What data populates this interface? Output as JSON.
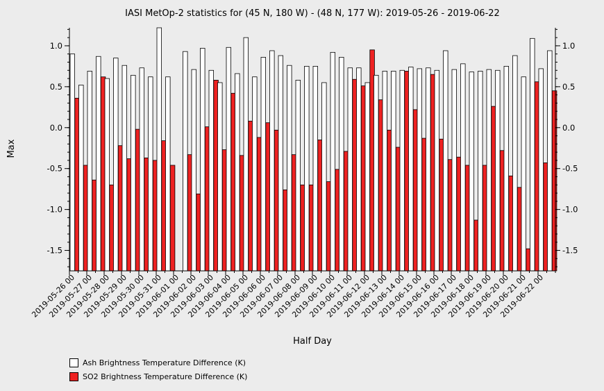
{
  "chart_data": {
    "type": "bar",
    "title": "IASI MetOp-2 statistics for (45 N, 180 W) - (48 N, 177 W): 2019-05-26 - 2019-06-22",
    "xlabel": "Half Day",
    "ylabel": "Max",
    "ylim": [
      -1.75,
      1.22
    ],
    "yticks": [
      -1.5,
      -1.0,
      -0.5,
      0.0,
      0.5,
      1.0
    ],
    "ytick_labels": [
      "-1.5",
      "-1.0",
      "-0.5",
      "0.0",
      "0.5",
      "1.0"
    ],
    "tick_labels": [
      "2019-05-26 00",
      "2019-05-27 00",
      "2019-05-28 00",
      "2019-05-29 00",
      "2019-05-30 00",
      "2019-05-31 00",
      "2019-06-01 00",
      "2019-06-02 00",
      "2019-06-03 00",
      "2019-06-04 00",
      "2019-06-05 00",
      "2019-06-06 00",
      "2019-06-07 00",
      "2019-06-08 00",
      "2019-06-09 00",
      "2019-06-10 00",
      "2019-06-11 00",
      "2019-06-12 00",
      "2019-06-13 00",
      "2019-06-14 00",
      "2019-06-15 00",
      "2019-06-16 00",
      "2019-06-17 00",
      "2019-06-18 00",
      "2019-06-19 00",
      "2019-06-20 00",
      "2019-06-21 00",
      "2019-06-22 00"
    ],
    "series": [
      {
        "name": "Ash Brightness Temperature Difference (K)",
        "color": "#ffffff",
        "values": [
          0.9,
          0.52,
          0.69,
          0.87,
          0.6,
          0.85,
          0.76,
          0.64,
          0.73,
          0.62,
          1.22,
          0.62,
          null,
          0.93,
          0.71,
          0.97,
          0.7,
          0.55,
          0.98,
          0.66,
          1.1,
          0.62,
          0.86,
          0.94,
          0.88,
          0.76,
          0.58,
          0.75,
          0.75,
          0.55,
          0.92,
          0.86,
          0.73,
          0.73,
          0.55,
          0.64,
          0.69,
          0.69,
          0.7,
          0.74,
          0.72,
          0.73,
          0.7,
          0.94,
          0.71,
          0.78,
          0.68,
          0.69,
          0.71,
          0.7,
          0.75,
          0.88,
          0.62,
          1.09,
          0.72,
          0.94
        ]
      },
      {
        "name": "SO2 Brightness Temperature Difference (K)",
        "color": "#ee2222",
        "values": [
          0.36,
          -0.46,
          -0.64,
          0.62,
          -0.7,
          -0.22,
          -0.38,
          -0.02,
          -0.37,
          -0.4,
          -0.16,
          -0.46,
          null,
          -0.33,
          -0.81,
          0.01,
          0.58,
          -0.27,
          0.42,
          -0.34,
          0.08,
          -0.12,
          0.06,
          -0.03,
          -0.76,
          -0.33,
          -0.7,
          -0.7,
          -0.15,
          -0.66,
          -0.51,
          -0.29,
          0.59,
          0.51,
          0.95,
          0.34,
          -0.03,
          -0.24,
          0.69,
          0.22,
          -0.13,
          0.65,
          -0.14,
          -0.39,
          -0.36,
          -0.46,
          -1.13,
          -0.46,
          0.26,
          -0.28,
          -0.59,
          -0.73,
          -1.48,
          0.56,
          -0.43,
          0.45
        ]
      }
    ],
    "legend_position": "bottom-left"
  }
}
